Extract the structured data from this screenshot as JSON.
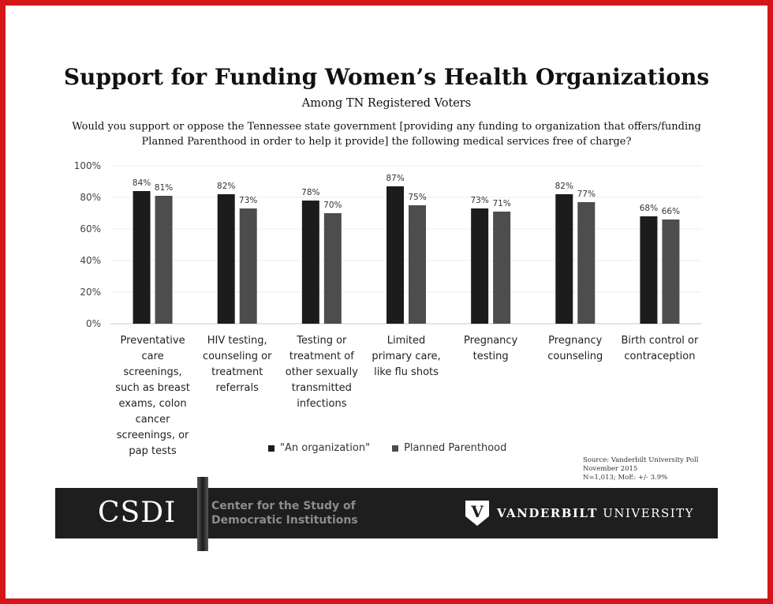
{
  "page": {
    "title": "Support for Funding Women’s Health Organizations",
    "subtitle": "Among TN Registered Voters",
    "question_line1": "Would you support or oppose the Tennessee state government [providing any funding to organization that offers/funding",
    "question_line2": "Planned Parenthood in order to help it provide] the following medical services free of charge?"
  },
  "chart_data": {
    "type": "bar",
    "title": "Support for Funding Women’s Health Organizations",
    "subtitle": "Among TN Registered Voters",
    "categories": [
      "Preventative care screenings, such as breast exams, colon cancer screenings, or pap tests",
      "HIV testing, counseling or treatment referrals",
      "Testing or treatment of other sexually transmitted infections",
      "Limited primary care, like flu shots",
      "Pregnancy testing",
      "Pregnancy counseling",
      "Birth control or contraception"
    ],
    "category_lines": [
      [
        "Preventative",
        "care",
        "screenings,",
        "such as breast",
        "exams, colon",
        "cancer",
        "screenings, or",
        "pap tests"
      ],
      [
        "HIV testing,",
        "counseling or",
        "treatment",
        "referrals"
      ],
      [
        "Testing or",
        "treatment of",
        "other sexually",
        "transmitted",
        "infections"
      ],
      [
        "Limited",
        "primary care,",
        "like flu shots"
      ],
      [
        "Pregnancy",
        "testing"
      ],
      [
        "Pregnancy",
        "counseling"
      ],
      [
        "Birth control or",
        "contraception"
      ]
    ],
    "series": [
      {
        "name": "\"An organization\"",
        "values": [
          84,
          82,
          78,
          87,
          73,
          82,
          68
        ],
        "color": "#1c1c1c"
      },
      {
        "name": "Planned Parenthood",
        "values": [
          81,
          73,
          70,
          75,
          71,
          77,
          66
        ],
        "color": "#4d4d4d"
      }
    ],
    "value_suffix": "%",
    "ylim": [
      0,
      100
    ],
    "yticks": [
      0,
      20,
      40,
      60,
      80,
      100
    ],
    "ytick_labels": [
      "0%",
      "20%",
      "40%",
      "60%",
      "80%",
      "100%"
    ],
    "grid": true,
    "legend_position": "bottom"
  },
  "source": {
    "line1": "Source: Vanderbilt University Poll",
    "line2": "November 2015",
    "line3": "N=1,013; MoE: +/- 3.9%"
  },
  "footer": {
    "logo_text": "CSDI",
    "center_line1": "Center for the Study of",
    "center_line2": "Democratic Institutions",
    "vu_logo_letter": "V",
    "vu_name_bold": "VANDERBILT",
    "vu_name_rest": " UNIVERSITY"
  },
  "colors": {
    "border": "#d4161b",
    "footer_bg": "#1e1e1e"
  }
}
